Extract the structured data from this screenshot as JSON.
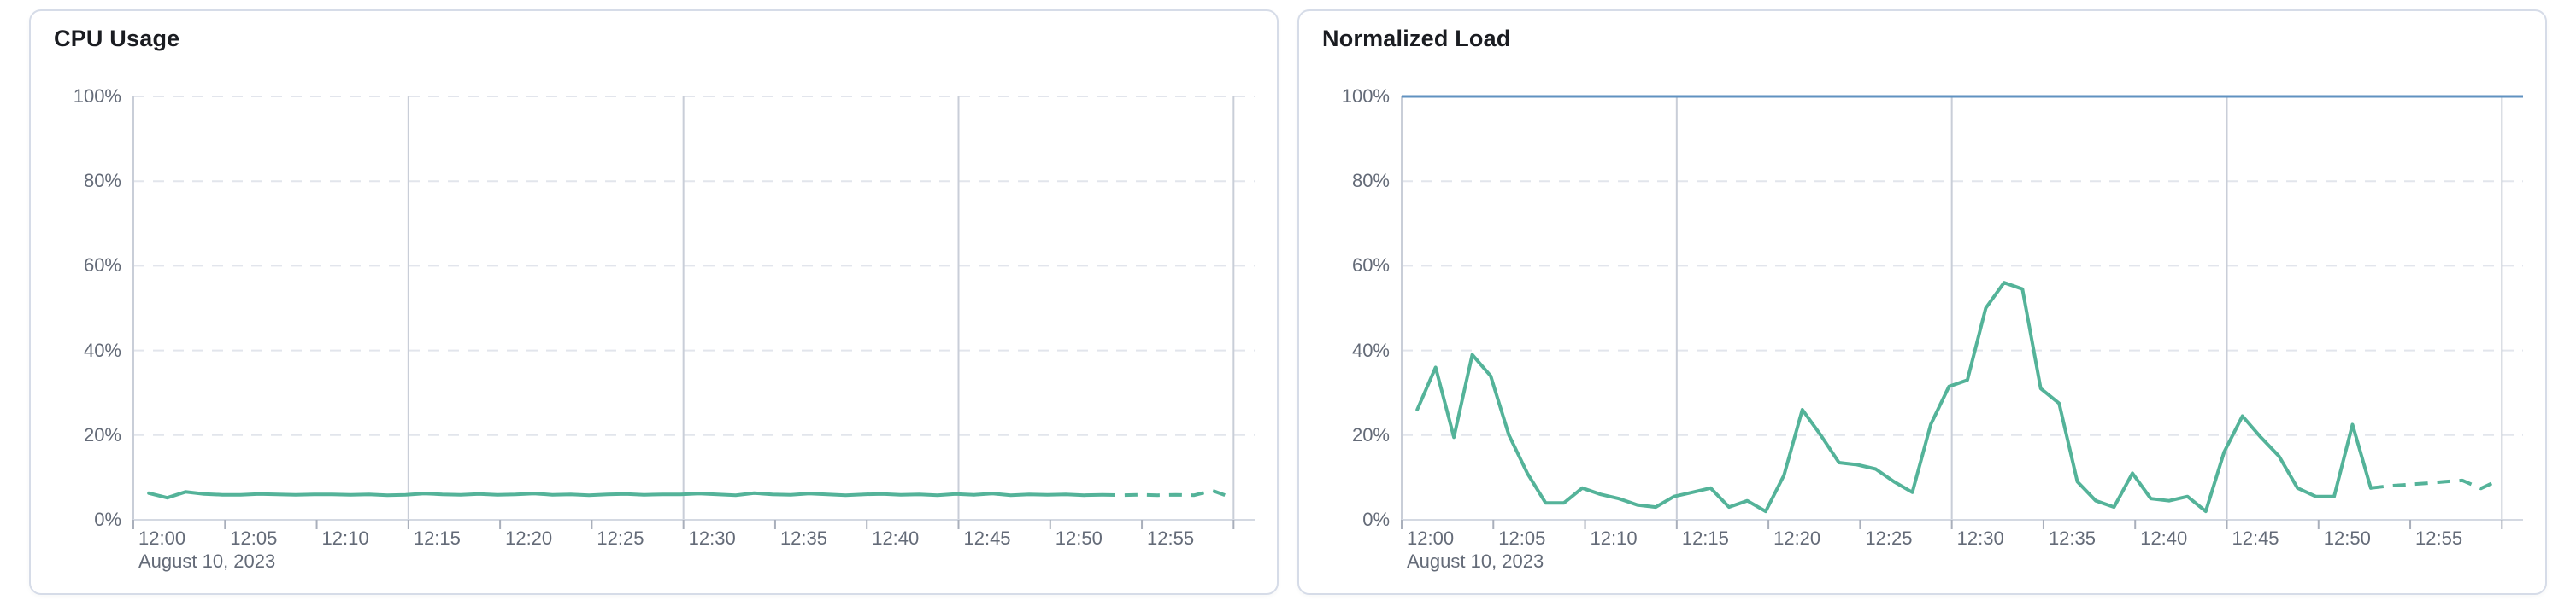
{
  "cards": [
    {
      "title": "CPU Usage"
    },
    {
      "title": "Normalized Load"
    }
  ],
  "axis": {
    "y_tick_labels": [
      "0%",
      "20%",
      "40%",
      "60%",
      "80%",
      "100%"
    ],
    "x_tick_labels": [
      "12:00",
      "12:05",
      "12:10",
      "12:15",
      "12:20",
      "12:25",
      "12:30",
      "12:35",
      "12:40",
      "12:45",
      "12:50",
      "12:55"
    ],
    "x_tick_minutes": [
      0,
      5,
      10,
      15,
      20,
      25,
      30,
      35,
      40,
      45,
      50,
      55
    ],
    "date_label": "August 10, 2023"
  },
  "colors": {
    "series_green": "#54b399",
    "threshold_blue": "#6092c0",
    "h_gridline": "#e2e5ec",
    "v_gridline": "#c9ced8",
    "axis_line": "#d4d9e2",
    "tick_mark": "#a9afbb",
    "axis_text": "#646b78",
    "title_text": "#1a1c21",
    "card_border": "#d6dce8"
  },
  "chart_data": [
    {
      "type": "line",
      "title": "CPU Usage",
      "xlabel": "",
      "ylabel": "",
      "ylim": [
        0,
        100
      ],
      "y_unit": "%",
      "x_start": "12:00",
      "x_end": "13:00",
      "x_date": "August 10, 2023",
      "x_step_minutes": 1,
      "grid": {
        "h_dashed_at": [
          20,
          40,
          60,
          80,
          100
        ],
        "v_solid_at_minutes": [
          15,
          30,
          45,
          60
        ]
      },
      "legend": "none",
      "series": [
        {
          "name": "cpu-usage",
          "color": "#54b399",
          "dashed_forecast_from_index": 52,
          "values": [
            6.3,
            5.2,
            6.6,
            6.1,
            5.9,
            5.9,
            6.1,
            6,
            5.9,
            6,
            6,
            5.9,
            6,
            5.8,
            5.9,
            6.2,
            6,
            5.9,
            6.1,
            5.9,
            6,
            6.2,
            5.9,
            6,
            5.8,
            6,
            6.1,
            5.9,
            6,
            6,
            6.2,
            6,
            5.8,
            6.3,
            6,
            5.9,
            6.2,
            6,
            5.8,
            6,
            6.1,
            5.9,
            6,
            5.8,
            6.1,
            5.9,
            6.2,
            5.8,
            6,
            5.9,
            6,
            5.8,
            5.9,
            5.8,
            5.9,
            5.8,
            5.9,
            5.8,
            6.9,
            5.3
          ]
        }
      ]
    },
    {
      "type": "line",
      "title": "Normalized Load",
      "xlabel": "",
      "ylabel": "",
      "ylim": [
        0,
        100
      ],
      "y_unit": "%",
      "x_start": "12:00",
      "x_end": "13:00",
      "x_date": "August 10, 2023",
      "x_step_minutes": 1,
      "grid": {
        "h_dashed_at": [
          20,
          40,
          60,
          80
        ],
        "v_solid_at_minutes": [
          15,
          30,
          45,
          60
        ]
      },
      "legend": "none",
      "threshold_line": {
        "name": "limit",
        "value": 100,
        "color": "#6092c0"
      },
      "series": [
        {
          "name": "normalized-load",
          "color": "#54b399",
          "dashed_forecast_from_index": 52,
          "values": [
            26,
            36,
            19.5,
            39,
            34,
            20,
            11,
            4,
            4,
            7.5,
            6,
            5,
            3.5,
            3,
            5.5,
            6.5,
            7.5,
            3,
            4.5,
            2,
            10.5,
            26,
            20,
            13.5,
            13,
            12,
            9,
            6.5,
            22.5,
            31.5,
            33,
            50,
            56,
            54.5,
            31,
            27.5,
            9,
            4.5,
            3,
            11,
            5,
            4.5,
            5.5,
            2,
            16,
            24.5,
            19.5,
            15,
            7.5,
            5.5,
            5.5,
            22.5,
            7.5,
            8,
            8.3,
            8.6,
            9,
            9.3,
            7.4,
            9.4
          ]
        }
      ]
    }
  ]
}
